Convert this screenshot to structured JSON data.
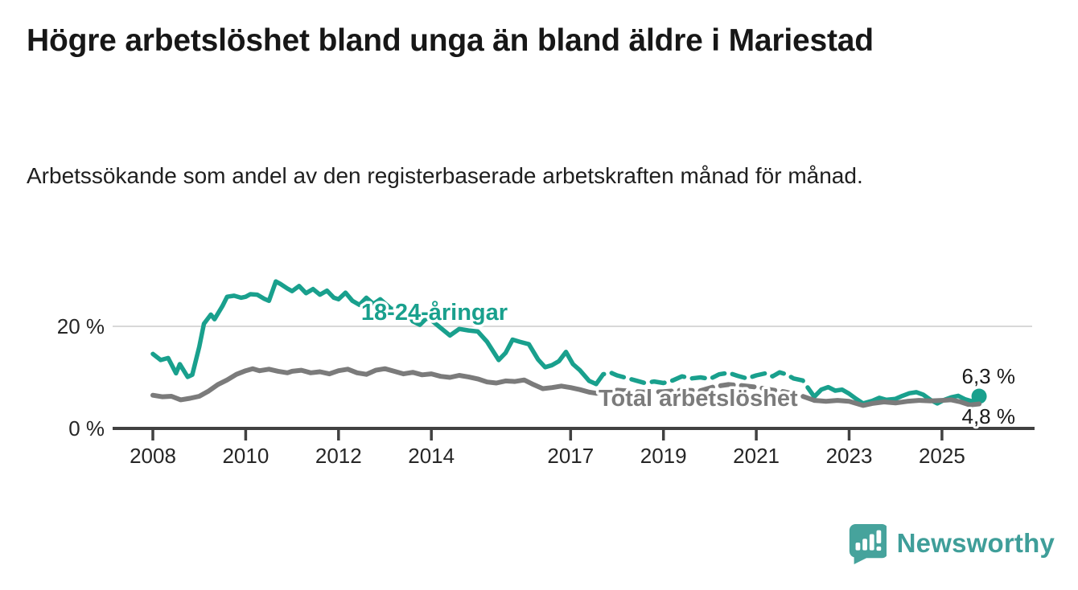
{
  "header": {
    "title": "Högre arbetslöshet bland unga än bland äldre i Mariestad",
    "subtitle": "Arbetssökande som andel av den registerbaserade arbetskraften månad för månad."
  },
  "colors": {
    "young_line": "#19a08d",
    "total_line": "#7b7b7b",
    "gridline": "#d8d8d8",
    "axis": "#414141",
    "end_label_text": "#1a1a1a",
    "logo_teal": "#46a39c",
    "logo_text_teal": "#3f9e99"
  },
  "chart_data": {
    "type": "line",
    "title": "Högre arbetslöshet bland unga än bland äldre i Mariestad",
    "subtitle": "Arbetssökande som andel av den registerbaserade arbetskraften månad för månad.",
    "ylabel": "",
    "xlabel": "",
    "unit": "%",
    "ylim": [
      0,
      32
    ],
    "xlim": [
      2007.1,
      2026.9
    ],
    "grid": "single-horizontal-at-20",
    "yticks": [
      {
        "value": 20,
        "label": "20 %"
      },
      {
        "value": 0,
        "label": "0 %"
      }
    ],
    "xticks": [
      2008,
      2010,
      2012,
      2014,
      2017,
      2019,
      2021,
      2023,
      2025
    ],
    "legend_position": "inline-series-labels",
    "note": "dashed segments mark statistics break between ~mid-2017 and early 2022",
    "series": [
      {
        "name": "18-24-åringar",
        "end_label": "6,3 %",
        "end_value": 6.3,
        "end_dot": true,
        "dashed_from": 2017.55,
        "dashed_to": 2022.25,
        "points": [
          [
            2008.0,
            14.6
          ],
          [
            2008.17,
            13.4
          ],
          [
            2008.33,
            13.8
          ],
          [
            2008.5,
            10.8
          ],
          [
            2008.58,
            12.6
          ],
          [
            2008.75,
            10.1
          ],
          [
            2008.85,
            10.5
          ],
          [
            2009.0,
            16.0
          ],
          [
            2009.1,
            20.5
          ],
          [
            2009.25,
            22.3
          ],
          [
            2009.33,
            21.4
          ],
          [
            2009.5,
            24.0
          ],
          [
            2009.6,
            25.8
          ],
          [
            2009.75,
            26.0
          ],
          [
            2009.9,
            25.6
          ],
          [
            2010.0,
            25.8
          ],
          [
            2010.1,
            26.3
          ],
          [
            2010.25,
            26.2
          ],
          [
            2010.4,
            25.4
          ],
          [
            2010.5,
            25.0
          ],
          [
            2010.65,
            28.8
          ],
          [
            2010.75,
            28.3
          ],
          [
            2010.9,
            27.4
          ],
          [
            2011.0,
            26.9
          ],
          [
            2011.15,
            27.9
          ],
          [
            2011.3,
            26.5
          ],
          [
            2011.45,
            27.3
          ],
          [
            2011.6,
            26.2
          ],
          [
            2011.75,
            27.0
          ],
          [
            2011.9,
            25.6
          ],
          [
            2012.0,
            25.3
          ],
          [
            2012.15,
            26.6
          ],
          [
            2012.3,
            25.0
          ],
          [
            2012.45,
            24.2
          ],
          [
            2012.6,
            25.6
          ],
          [
            2012.75,
            24.4
          ],
          [
            2012.9,
            25.3
          ],
          [
            2013.0,
            24.5
          ],
          [
            2013.15,
            23.3
          ],
          [
            2013.3,
            23.8
          ],
          [
            2013.45,
            23.2
          ],
          [
            2013.6,
            21.0
          ],
          [
            2013.75,
            20.3
          ],
          [
            2013.9,
            21.6
          ],
          [
            2014.0,
            21.2
          ],
          [
            2014.2,
            19.7
          ],
          [
            2014.4,
            18.2
          ],
          [
            2014.6,
            19.5
          ],
          [
            2014.8,
            19.2
          ],
          [
            2015.0,
            19.0
          ],
          [
            2015.2,
            17.0
          ],
          [
            2015.45,
            13.4
          ],
          [
            2015.6,
            14.8
          ],
          [
            2015.75,
            17.4
          ],
          [
            2015.9,
            17.0
          ],
          [
            2016.1,
            16.5
          ],
          [
            2016.3,
            13.5
          ],
          [
            2016.45,
            12.0
          ],
          [
            2016.6,
            12.4
          ],
          [
            2016.75,
            13.2
          ],
          [
            2016.9,
            15.0
          ],
          [
            2017.05,
            12.6
          ],
          [
            2017.2,
            11.4
          ],
          [
            2017.4,
            9.3
          ],
          [
            2017.55,
            8.7
          ],
          [
            2017.7,
            10.6
          ],
          [
            2017.85,
            11.0
          ],
          [
            2018.0,
            10.4
          ],
          [
            2018.2,
            9.9
          ],
          [
            2018.4,
            9.4
          ],
          [
            2018.6,
            8.9
          ],
          [
            2018.8,
            9.2
          ],
          [
            2019.0,
            8.9
          ],
          [
            2019.2,
            9.4
          ],
          [
            2019.4,
            10.2
          ],
          [
            2019.6,
            9.8
          ],
          [
            2019.8,
            10.0
          ],
          [
            2020.0,
            9.7
          ],
          [
            2020.2,
            10.6
          ],
          [
            2020.4,
            10.9
          ],
          [
            2020.6,
            10.3
          ],
          [
            2020.8,
            9.8
          ],
          [
            2021.0,
            10.4
          ],
          [
            2021.2,
            10.8
          ],
          [
            2021.35,
            10.2
          ],
          [
            2021.5,
            11.0
          ],
          [
            2021.65,
            10.6
          ],
          [
            2021.8,
            9.8
          ],
          [
            2022.0,
            9.4
          ],
          [
            2022.25,
            6.2
          ],
          [
            2022.4,
            7.6
          ],
          [
            2022.55,
            8.1
          ],
          [
            2022.7,
            7.4
          ],
          [
            2022.85,
            7.6
          ],
          [
            2023.0,
            6.8
          ],
          [
            2023.15,
            5.8
          ],
          [
            2023.3,
            4.9
          ],
          [
            2023.5,
            5.4
          ],
          [
            2023.65,
            6.0
          ],
          [
            2023.8,
            5.6
          ],
          [
            2024.0,
            5.8
          ],
          [
            2024.15,
            6.4
          ],
          [
            2024.3,
            6.9
          ],
          [
            2024.45,
            7.1
          ],
          [
            2024.6,
            6.6
          ],
          [
            2024.75,
            5.6
          ],
          [
            2024.9,
            4.9
          ],
          [
            2025.05,
            5.6
          ],
          [
            2025.2,
            6.1
          ],
          [
            2025.35,
            6.4
          ],
          [
            2025.5,
            5.7
          ],
          [
            2025.65,
            5.3
          ],
          [
            2025.8,
            6.3
          ]
        ]
      },
      {
        "name": "Total arbetslöshet",
        "end_label": "4,8 %",
        "end_value": 4.8,
        "end_dot": false,
        "dashed_from": 2017.55,
        "dashed_to": 2022.25,
        "points": [
          [
            2008.0,
            6.5
          ],
          [
            2008.2,
            6.2
          ],
          [
            2008.4,
            6.3
          ],
          [
            2008.6,
            5.6
          ],
          [
            2008.8,
            5.9
          ],
          [
            2009.0,
            6.3
          ],
          [
            2009.2,
            7.3
          ],
          [
            2009.4,
            8.6
          ],
          [
            2009.6,
            9.5
          ],
          [
            2009.8,
            10.6
          ],
          [
            2010.0,
            11.3
          ],
          [
            2010.15,
            11.7
          ],
          [
            2010.3,
            11.3
          ],
          [
            2010.5,
            11.6
          ],
          [
            2010.7,
            11.2
          ],
          [
            2010.9,
            10.9
          ],
          [
            2011.0,
            11.2
          ],
          [
            2011.2,
            11.4
          ],
          [
            2011.4,
            10.9
          ],
          [
            2011.6,
            11.1
          ],
          [
            2011.8,
            10.7
          ],
          [
            2012.0,
            11.3
          ],
          [
            2012.2,
            11.6
          ],
          [
            2012.4,
            10.9
          ],
          [
            2012.6,
            10.6
          ],
          [
            2012.8,
            11.4
          ],
          [
            2013.0,
            11.7
          ],
          [
            2013.2,
            11.2
          ],
          [
            2013.4,
            10.7
          ],
          [
            2013.6,
            11.0
          ],
          [
            2013.8,
            10.5
          ],
          [
            2014.0,
            10.7
          ],
          [
            2014.2,
            10.2
          ],
          [
            2014.4,
            10.0
          ],
          [
            2014.6,
            10.4
          ],
          [
            2014.8,
            10.1
          ],
          [
            2015.0,
            9.7
          ],
          [
            2015.2,
            9.1
          ],
          [
            2015.4,
            8.9
          ],
          [
            2015.6,
            9.3
          ],
          [
            2015.8,
            9.2
          ],
          [
            2016.0,
            9.5
          ],
          [
            2016.2,
            8.6
          ],
          [
            2016.4,
            7.8
          ],
          [
            2016.6,
            8.0
          ],
          [
            2016.8,
            8.3
          ],
          [
            2017.0,
            8.0
          ],
          [
            2017.2,
            7.6
          ],
          [
            2017.4,
            7.1
          ],
          [
            2017.55,
            6.9
          ],
          [
            2017.8,
            7.3
          ],
          [
            2018.0,
            7.5
          ],
          [
            2018.3,
            7.3
          ],
          [
            2018.6,
            7.1
          ],
          [
            2019.0,
            7.2
          ],
          [
            2019.4,
            7.5
          ],
          [
            2019.8,
            7.4
          ],
          [
            2020.1,
            8.2
          ],
          [
            2020.4,
            8.6
          ],
          [
            2020.7,
            8.4
          ],
          [
            2021.0,
            8.1
          ],
          [
            2021.3,
            7.6
          ],
          [
            2021.6,
            7.2
          ],
          [
            2022.0,
            6.3
          ],
          [
            2022.25,
            5.5
          ],
          [
            2022.5,
            5.3
          ],
          [
            2022.75,
            5.5
          ],
          [
            2023.0,
            5.3
          ],
          [
            2023.3,
            4.5
          ],
          [
            2023.5,
            4.9
          ],
          [
            2023.75,
            5.2
          ],
          [
            2024.0,
            5.0
          ],
          [
            2024.25,
            5.3
          ],
          [
            2024.5,
            5.5
          ],
          [
            2024.75,
            5.4
          ],
          [
            2025.0,
            5.5
          ],
          [
            2025.2,
            5.6
          ],
          [
            2025.4,
            5.2
          ],
          [
            2025.6,
            4.6
          ],
          [
            2025.8,
            4.8
          ]
        ]
      }
    ]
  },
  "footer": {
    "brand": "Newsworthy"
  }
}
